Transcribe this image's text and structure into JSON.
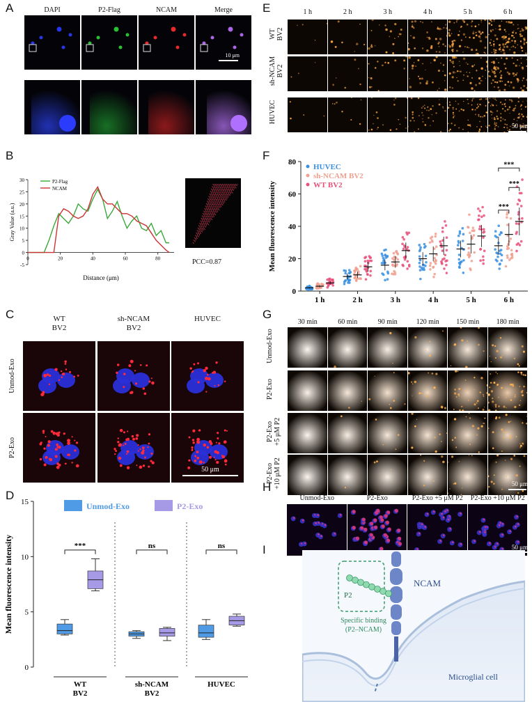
{
  "panels": {
    "A": "A",
    "B": "B",
    "C": "C",
    "D": "D",
    "E": "E",
    "F": "F",
    "G": "G",
    "H": "H",
    "I": "I"
  },
  "panel_a": {
    "columns": [
      "DAPI",
      "P2-Flag",
      "NCAM",
      "Merge"
    ],
    "scale": "10 μm"
  },
  "panel_c": {
    "columns": [
      "WT\nBV2",
      "sh-NCAM\nBV2",
      "HUVEC"
    ],
    "rows": [
      "Unmod-Exo",
      "P2-Exo"
    ],
    "scale": "50 μm"
  },
  "panel_e": {
    "columns": [
      "1 h",
      "2 h",
      "3 h",
      "4 h",
      "5 h",
      "6 h"
    ],
    "rows": [
      "WT\nBV2",
      "sh-NCAM\nBV2",
      "HUVEC"
    ],
    "scale": "50 μm"
  },
  "panel_g": {
    "columns": [
      "30 min",
      "60 min",
      "90 min",
      "120 min",
      "150 min",
      "180 min"
    ],
    "rows": [
      "Unmod-Exo",
      "P2-Exo",
      "P2-Exo\n+5 μM P2",
      "P2-Exo\n+10 μM P2"
    ],
    "scale": "50 μm"
  },
  "panel_h": {
    "columns": [
      "Unmod-Exo",
      "P2-Exo",
      "P2-Exo +5 μM P2",
      "P2-Exo +10 μM P2"
    ],
    "scale": "50 μm"
  },
  "panel_i": {
    "p2": "P2",
    "ncam": "NCAM",
    "binding": "Specific binding",
    "binding2": "(P2–NCAM)",
    "cell": "Microglial cell"
  },
  "chart_data": [
    {
      "id": "B",
      "type": "line",
      "ylabel": "Gray Value (a.u.)",
      "xlabel": "Distance (μm)",
      "xlim": [
        0,
        90
      ],
      "ylim": [
        -5,
        30
      ],
      "xticks": [
        0,
        20,
        40,
        60,
        80
      ],
      "yticks": [
        -5,
        0,
        5,
        10,
        15,
        20,
        25,
        30
      ],
      "legend": "top-left",
      "pcc": "PCC=0.87",
      "series": [
        {
          "name": "P2-Flag",
          "color": "#3aa83a",
          "x": [
            0,
            10,
            13,
            16,
            19,
            22,
            25,
            28,
            31,
            34,
            37,
            40,
            43,
            46,
            49,
            52,
            55,
            58,
            61,
            64,
            67,
            70,
            73,
            76,
            79,
            82,
            85,
            87
          ],
          "y": [
            0,
            0,
            5,
            11,
            16,
            14,
            12,
            15,
            20,
            18,
            17,
            22,
            26,
            22,
            14,
            17,
            21,
            15,
            10,
            13,
            15,
            10,
            9,
            12,
            7,
            9,
            4,
            4
          ]
        },
        {
          "name": "NCAM",
          "color": "#cc3333",
          "x": [
            0,
            10,
            13,
            16,
            19,
            22,
            25,
            28,
            31,
            34,
            37,
            40,
            43,
            46,
            49,
            52,
            55,
            58,
            61,
            64,
            67,
            70,
            73,
            76,
            79,
            82,
            85,
            87
          ],
          "y": [
            0,
            0,
            0,
            0,
            15,
            18,
            17,
            15,
            14,
            15,
            18,
            24,
            27,
            22,
            20,
            20,
            18,
            16,
            16,
            15,
            13,
            12,
            11,
            8,
            5,
            3,
            1,
            0
          ]
        }
      ]
    },
    {
      "id": "D",
      "type": "box",
      "ylabel": "Mean fluorescence intensity",
      "ylim": [
        0,
        15
      ],
      "yticks": [
        0,
        5,
        10,
        15
      ],
      "groups": [
        "WT\nBV2",
        "sh-NCAM\nBV2",
        "HUVEC"
      ],
      "legend": "top",
      "significance": [
        "***",
        "ns",
        "ns"
      ],
      "series": [
        {
          "name": "Unmod-Exo",
          "color": "#4f9be6",
          "boxes": [
            [
              2.9,
              3.0,
              3.3,
              3.9,
              4.3
            ],
            [
              2.6,
              2.8,
              3.0,
              3.2,
              3.3
            ],
            [
              2.5,
              2.7,
              3.1,
              3.8,
              4.3
            ]
          ]
        },
        {
          "name": "P2-Exo",
          "color": "#a69ae6",
          "boxes": [
            [
              6.9,
              7.1,
              7.9,
              8.7,
              9.8
            ],
            [
              2.4,
              2.8,
              3.1,
              3.5,
              3.6
            ],
            [
              3.7,
              3.8,
              4.2,
              4.6,
              4.8
            ]
          ]
        }
      ]
    },
    {
      "id": "F",
      "type": "scatter",
      "ylabel": "Mean fluorescence intensity",
      "ylim": [
        0,
        80
      ],
      "yticks": [
        0,
        20,
        40,
        60,
        80
      ],
      "categories": [
        "1 h",
        "2 h",
        "3 h",
        "4 h",
        "5 h",
        "6 h"
      ],
      "legend": "top-left",
      "significance": [
        "***",
        "***",
        "***"
      ],
      "series": [
        {
          "name": "HUVEC",
          "color": "#3a8fe0",
          "means": [
            2,
            9,
            16,
            20,
            26,
            28
          ]
        },
        {
          "name": "sh-NCAM BV2",
          "color": "#f0a090",
          "means": [
            3,
            10,
            18,
            23,
            29,
            35
          ]
        },
        {
          "name": "WT BV2",
          "color": "#e8507a",
          "means": [
            5,
            15,
            25,
            28,
            34,
            43
          ]
        }
      ]
    }
  ]
}
